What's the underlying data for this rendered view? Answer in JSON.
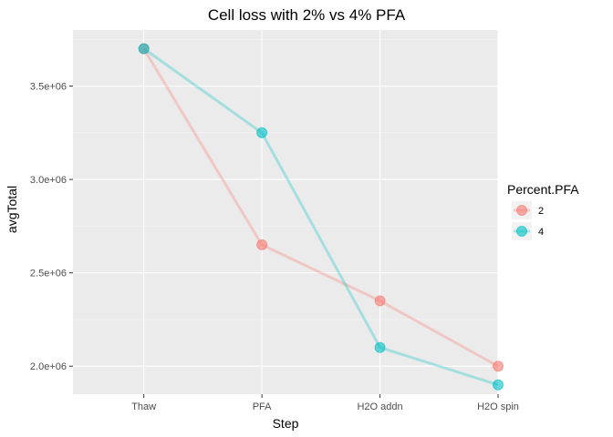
{
  "chart_data": {
    "type": "line",
    "title": "Cell loss with 2% vs 4% PFA",
    "xlabel": "Step",
    "ylabel": "avgTotal",
    "categories": [
      "Thaw",
      "PFA",
      "H2O addn",
      "H2O spin"
    ],
    "ylim": [
      1850000,
      3800000
    ],
    "yticks": [
      2000000,
      2500000,
      3000000,
      3500000
    ],
    "ytick_labels": [
      "2.0e+06",
      "2.5e+06",
      "3.0e+06",
      "3.5e+06"
    ],
    "grid": true,
    "legend": {
      "title": "Percent.PFA",
      "position": "right"
    },
    "series": [
      {
        "name": "2",
        "color": "#F8766D",
        "values": [
          3700000,
          2650000,
          2350000,
          2000000
        ]
      },
      {
        "name": "4",
        "color": "#00BFC4",
        "values": [
          3700000,
          3250000,
          2100000,
          1900000
        ]
      }
    ]
  }
}
